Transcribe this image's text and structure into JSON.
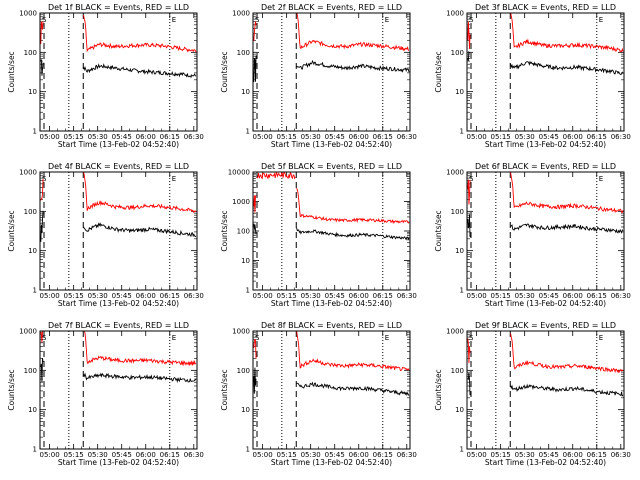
{
  "chart_data": [
    {
      "type": "line",
      "title": "Det 1f BLACK = Events, RED = LLD",
      "xlabel": "Start Time (13-Feb-02 04:52:40)",
      "ylabel": "Counts/sec",
      "yscale": "log",
      "ylim": [
        1,
        1000
      ],
      "x_ticks": [
        "05:00",
        "05:15",
        "05:30",
        "05:45",
        "06:00",
        "06:15",
        "06:30"
      ],
      "y_ticks": [
        "1",
        "10",
        "100",
        "1000"
      ],
      "marker_labels": [
        "S",
        "E"
      ],
      "series": [
        {
          "name": "Events",
          "color": "#000000",
          "levels": [
            30,
            45,
            40,
            35,
            32,
            30,
            28,
            25
          ]
        },
        {
          "name": "LLD",
          "color": "#ff0000",
          "levels": [
            95,
            160,
            140,
            150,
            155,
            145,
            125,
            110
          ]
        }
      ]
    },
    {
      "type": "line",
      "title": "Det 2f BLACK = Events, RED = LLD",
      "xlabel": "Start Time (13-Feb-02 04:52:40)",
      "ylabel": "Counts/sec",
      "yscale": "log",
      "ylim": [
        1,
        1000
      ],
      "x_ticks": [
        "05:00",
        "05:15",
        "05:30",
        "05:45",
        "06:00",
        "06:15",
        "06:30"
      ],
      "y_ticks": [
        "1",
        "10",
        "100",
        "1000"
      ],
      "marker_labels": [
        "S",
        "E"
      ],
      "series": [
        {
          "name": "Events",
          "color": "#000000",
          "levels": [
            35,
            55,
            45,
            40,
            45,
            40,
            38,
            35
          ]
        },
        {
          "name": "LLD",
          "color": "#ff0000",
          "levels": [
            110,
            190,
            150,
            140,
            160,
            150,
            135,
            120
          ]
        }
      ]
    },
    {
      "type": "line",
      "title": "Det 3f BLACK = Events, RED = LLD",
      "xlabel": "Start Time (13-Feb-02 04:52:40)",
      "ylabel": "Counts/sec",
      "yscale": "log",
      "ylim": [
        1,
        1000
      ],
      "x_ticks": [
        "05:00",
        "05:15",
        "05:30",
        "05:45",
        "06:00",
        "06:15",
        "06:30"
      ],
      "y_ticks": [
        "1",
        "10",
        "100",
        "1000"
      ],
      "marker_labels": [
        "S",
        "E"
      ],
      "series": [
        {
          "name": "Events",
          "color": "#000000",
          "levels": [
            35,
            55,
            45,
            40,
            42,
            38,
            34,
            28
          ]
        },
        {
          "name": "LLD",
          "color": "#ff0000",
          "levels": [
            110,
            190,
            150,
            145,
            155,
            145,
            130,
            110
          ]
        }
      ]
    },
    {
      "type": "line",
      "title": "Det 4f BLACK = Events, RED = LLD",
      "xlabel": "Start Time (13-Feb-02 04:52:40)",
      "ylabel": "Counts/sec",
      "yscale": "log",
      "ylim": [
        1,
        1000
      ],
      "x_ticks": [
        "05:00",
        "05:15",
        "05:30",
        "05:45",
        "06:00",
        "06:15",
        "06:30"
      ],
      "y_ticks": [
        "1",
        "10",
        "100",
        "1000"
      ],
      "marker_labels": [
        "S",
        "E"
      ],
      "series": [
        {
          "name": "Events",
          "color": "#000000",
          "levels": [
            30,
            45,
            35,
            32,
            35,
            32,
            28,
            25
          ]
        },
        {
          "name": "LLD",
          "color": "#ff0000",
          "levels": [
            100,
            170,
            130,
            125,
            140,
            130,
            115,
            100
          ]
        }
      ]
    },
    {
      "type": "line",
      "title": "Det 5f BLACK = Events, RED = LLD",
      "xlabel": "Start Time (13-Feb-02 04:52:40)",
      "ylabel": "Counts/sec",
      "yscale": "log",
      "ylim": [
        1,
        10000
      ],
      "x_ticks": [
        "05:00",
        "05:15",
        "05:30",
        "05:45",
        "06:00",
        "06:15",
        "06:30"
      ],
      "y_ticks": [
        "1",
        "10",
        "100",
        "1000",
        "10000"
      ],
      "marker_labels": [],
      "series": [
        {
          "name": "Events",
          "color": "#000000",
          "levels": [
            85,
            100,
            80,
            70,
            75,
            70,
            62,
            55
          ]
        },
        {
          "name": "LLD",
          "color": "#ff0000",
          "levels": [
            350,
            300,
            240,
            230,
            240,
            230,
            210,
            200
          ]
        }
      ]
    },
    {
      "type": "line",
      "title": "Det 6f BLACK = Events, RED = LLD",
      "xlabel": "Start Time (13-Feb-02 04:52:40)",
      "ylabel": "Counts/sec",
      "yscale": "log",
      "ylim": [
        1,
        1000
      ],
      "x_ticks": [
        "05:00",
        "05:15",
        "05:30",
        "05:45",
        "06:00",
        "06:15",
        "06:30"
      ],
      "y_ticks": [
        "1",
        "10",
        "100",
        "1000"
      ],
      "marker_labels": [
        "S",
        "E"
      ],
      "series": [
        {
          "name": "Events",
          "color": "#000000",
          "levels": [
            32,
            45,
            38,
            40,
            42,
            36,
            34,
            30
          ]
        },
        {
          "name": "LLD",
          "color": "#ff0000",
          "levels": [
            110,
            160,
            135,
            130,
            140,
            125,
            110,
            100
          ]
        }
      ]
    },
    {
      "type": "line",
      "title": "Det 7f BLACK = Events, RED = LLD",
      "xlabel": "Start Time (13-Feb-02 04:52:40)",
      "ylabel": "Counts/sec",
      "yscale": "log",
      "ylim": [
        1,
        1000
      ],
      "x_ticks": [
        "05:00",
        "05:15",
        "05:30",
        "05:45",
        "06:00",
        "06:15",
        "06:30"
      ],
      "y_ticks": [
        "1",
        "10",
        "100",
        "1000"
      ],
      "marker_labels": [
        "S",
        "E"
      ],
      "series": [
        {
          "name": "Events",
          "color": "#000000",
          "levels": [
            60,
            75,
            70,
            65,
            68,
            62,
            58,
            55
          ]
        },
        {
          "name": "LLD",
          "color": "#ff0000",
          "levels": [
            150,
            210,
            180,
            175,
            180,
            165,
            155,
            150
          ]
        }
      ]
    },
    {
      "type": "line",
      "title": "Det 8f BLACK = Events, RED = LLD",
      "xlabel": "Start Time (13-Feb-02 04:52:40)",
      "ylabel": "Counts/sec",
      "yscale": "log",
      "ylim": [
        1,
        1000
      ],
      "x_ticks": [
        "05:00",
        "05:15",
        "05:30",
        "05:45",
        "06:00",
        "06:15",
        "06:30"
      ],
      "y_ticks": [
        "1",
        "10",
        "100",
        "1000"
      ],
      "marker_labels": [
        "S",
        "E"
      ],
      "series": [
        {
          "name": "Events",
          "color": "#000000",
          "levels": [
            35,
            45,
            38,
            34,
            36,
            32,
            28,
            25
          ]
        },
        {
          "name": "LLD",
          "color": "#ff0000",
          "levels": [
            110,
            180,
            140,
            130,
            140,
            130,
            115,
            100
          ]
        }
      ]
    },
    {
      "type": "line",
      "title": "Det 9f BLACK = Events, RED = LLD",
      "xlabel": "Start Time (13-Feb-02 04:52:40)",
      "ylabel": "Counts/sec",
      "yscale": "log",
      "ylim": [
        1,
        1000
      ],
      "x_ticks": [
        "05:00",
        "05:15",
        "05:30",
        "05:45",
        "06:00",
        "06:15",
        "06:30"
      ],
      "y_ticks": [
        "1",
        "10",
        "100",
        "1000"
      ],
      "marker_labels": [
        "S",
        "E"
      ],
      "series": [
        {
          "name": "Events",
          "color": "#000000",
          "levels": [
            30,
            40,
            35,
            32,
            35,
            30,
            27,
            25
          ]
        },
        {
          "name": "LLD",
          "color": "#ff0000",
          "levels": [
            100,
            160,
            130,
            120,
            130,
            120,
            105,
            95
          ]
        }
      ]
    }
  ]
}
